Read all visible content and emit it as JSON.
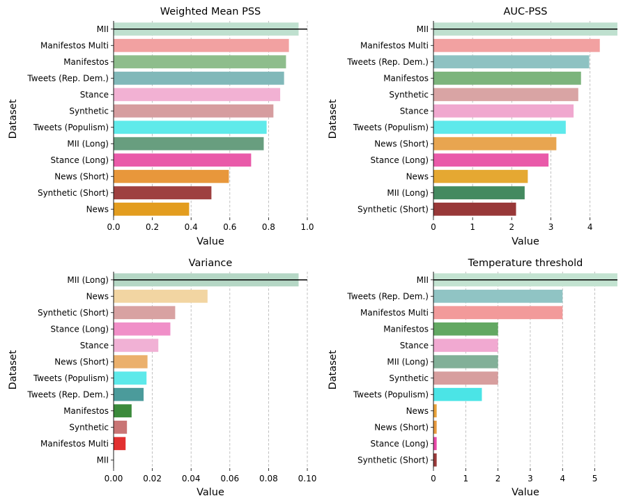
{
  "chart_data": [
    {
      "type": "bar",
      "orientation": "horizontal",
      "title": "Weighted Mean PSS",
      "xlabel": "Value",
      "ylabel": "Dataset",
      "xlim": [
        0,
        1.0
      ],
      "xticks": [
        "0.0",
        "0.2",
        "0.4",
        "0.6",
        "0.8",
        "1.0"
      ],
      "grid": "x-dashed",
      "reference_line": "MII",
      "categories": [
        "MII",
        "Manifestos Multi",
        "Manifestos",
        "Tweets (Rep. Dem.)",
        "Stance",
        "Synthetic",
        "Tweets (Populism)",
        "MII (Long)",
        "Stance (Long)",
        "News (Short)",
        "Synthetic (Short)",
        "News"
      ],
      "values": [
        0.955,
        0.905,
        0.89,
        0.88,
        0.86,
        0.825,
        0.79,
        0.775,
        0.71,
        0.595,
        0.505,
        0.39
      ],
      "colors": [
        "#bfe0cf",
        "#f2a1a1",
        "#8ebd8c",
        "#81b8b9",
        "#f2b1d3",
        "#d69d9f",
        "#5feaea",
        "#689e7f",
        "#e95aa9",
        "#e8973b",
        "#9e4040",
        "#e39d1f"
      ]
    },
    {
      "type": "bar",
      "orientation": "horizontal",
      "title": "AUC-PSS",
      "xlabel": "Value",
      "ylabel": "Dataset",
      "xlim": [
        0,
        4.7
      ],
      "xticks": [
        "0",
        "1",
        "2",
        "3",
        "4"
      ],
      "grid": "x-dashed",
      "reference_line": "MII",
      "categories": [
        "MII",
        "Manifestos Multi",
        "Tweets (Rep. Dem.)",
        "Manifestos",
        "Synthetic",
        "Stance",
        "Tweets (Populism)",
        "News (Short)",
        "Stance (Long)",
        "News",
        "MII (Long)",
        "Synthetic (Short)"
      ],
      "values": [
        4.7,
        4.25,
        3.98,
        3.77,
        3.7,
        3.58,
        3.38,
        3.14,
        2.94,
        2.41,
        2.33,
        2.11
      ],
      "colors": [
        "#bfe0cf",
        "#f2a1a1",
        "#8ec2c2",
        "#7cb47c",
        "#d9a4a4",
        "#f0a8cf",
        "#5ee9eb",
        "#e8a550",
        "#e95aa9",
        "#e5a832",
        "#448a60",
        "#983838"
      ]
    },
    {
      "type": "bar",
      "orientation": "horizontal",
      "title": "Variance",
      "xlabel": "Value",
      "ylabel": "Dataset",
      "xlim": [
        0,
        0.1
      ],
      "xticks": [
        "0.00",
        "0.02",
        "0.04",
        "0.06",
        "0.08",
        "0.10"
      ],
      "grid": "x-dashed",
      "reference_line": "MII (Long)",
      "categories": [
        "MII (Long)",
        "News",
        "Synthetic (Short)",
        "Stance (Long)",
        "Stance",
        "News (Short)",
        "Tweets (Populism)",
        "Tweets (Rep. Dem.)",
        "Manifestos",
        "Synthetic",
        "Manifestos Multi",
        "MII"
      ],
      "values": [
        0.0955,
        0.0485,
        0.0318,
        0.0293,
        0.0231,
        0.0175,
        0.017,
        0.0155,
        0.0093,
        0.0069,
        0.0062,
        0.0
      ],
      "colors": [
        "#b5d7c5",
        "#f2d5a2",
        "#d8a2a2",
        "#f08fc8",
        "#f1b1d5",
        "#ebb06c",
        "#5de9ea",
        "#4b9b9b",
        "#3b8a3b",
        "#c97575",
        "#e23030",
        "#cccccc"
      ]
    },
    {
      "type": "bar",
      "orientation": "horizontal",
      "title": "Temperature threshold",
      "xlabel": "Value",
      "ylabel": "Dataset",
      "xlim": [
        0,
        5.7
      ],
      "xticks": [
        "0",
        "1",
        "2",
        "3",
        "4",
        "5"
      ],
      "grid": "x-dashed",
      "reference_line": "MII",
      "categories": [
        "MII",
        "Tweets (Rep. Dem.)",
        "Manifestos Multi",
        "Manifestos",
        "Stance",
        "MII (Long)",
        "Synthetic",
        "Tweets (Populism)",
        "News",
        "News (Short)",
        "Stance (Long)",
        "Synthetic (Short)"
      ],
      "values": [
        5.7,
        4.0,
        4.0,
        2.0,
        2.0,
        2.0,
        2.0,
        1.5,
        0.1,
        0.1,
        0.1,
        0.1
      ],
      "colors": [
        "#c3e3d1",
        "#90c4c4",
        "#f29a9a",
        "#62a862",
        "#f1a9d1",
        "#82b098",
        "#d79e9e",
        "#4be4e6",
        "#e8a23a",
        "#e79a40",
        "#e848a8",
        "#9a3a3a"
      ]
    }
  ]
}
